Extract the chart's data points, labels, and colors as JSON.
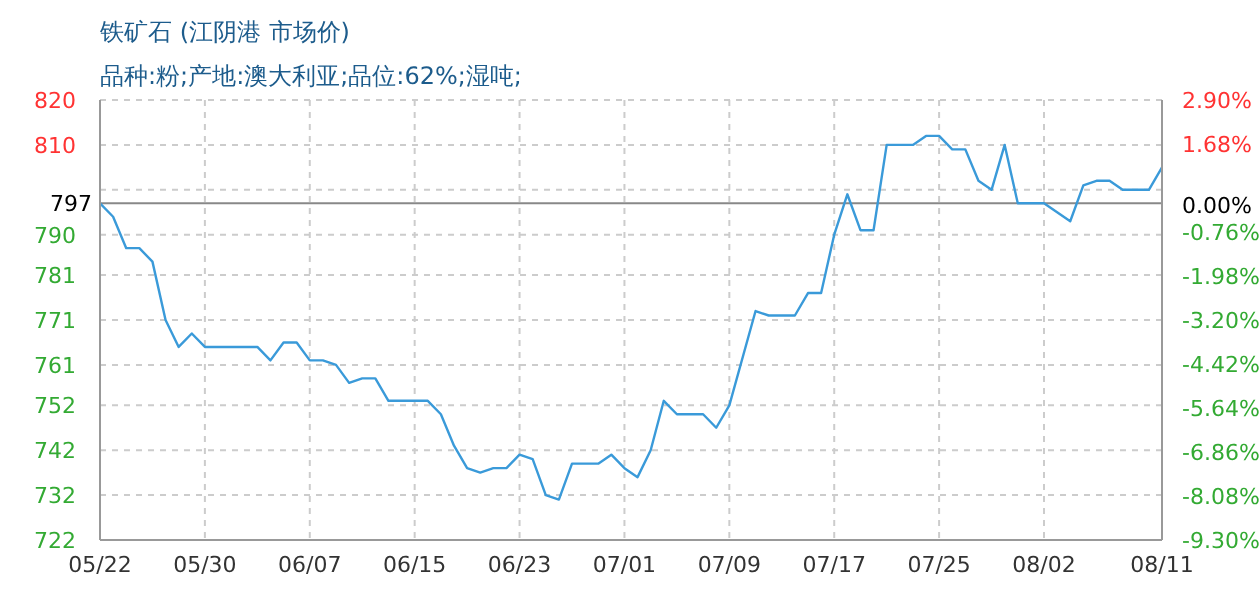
{
  "chart_data": {
    "type": "line",
    "title": "铁矿石 (江阴港 市场价)",
    "subtitle": "品种:粉;产地:澳大利亚;品位:62%;湿吨;",
    "x": [
      "--05-22",
      "--05-23",
      "--05-24",
      "--05-25",
      "--05-26",
      "--05-27",
      "--05-28",
      "--05-29",
      "--05-30",
      "--06-03",
      "--06-04",
      "--06-05",
      "--06-06",
      "--06-07",
      "--06-08",
      "--06-09",
      "--06-10",
      "--06-11",
      "--06-12",
      "--06-13",
      "--06-16",
      "--06-17",
      "--06-18",
      "--06-19",
      "--06-20",
      "--06-21",
      "--06-22",
      "--06-23",
      "--06-24",
      "--06-25",
      "--06-26",
      "--06-27",
      "--06-29",
      "--06-30",
      "--07-01",
      "--07-02",
      "--07-03",
      "--07-04",
      "--07-05",
      "--07-07",
      "--07-08",
      "--07-09",
      "--07-11",
      "--07-12",
      "--07-14",
      "--07-15",
      "--07-16",
      "--07-17",
      "--07-18",
      "--07-19",
      "--07-20",
      "--07-21",
      "--07-23",
      "--07-24",
      "--07-25",
      "--07-26",
      "--07-27",
      "--07-28",
      "--07-29",
      "--07-30",
      "--07-31",
      "--08-02",
      "--08-03",
      "--08-04",
      "--08-05",
      "--08-06",
      "--08-07",
      "--08-08",
      "--08-10",
      "--08-11"
    ],
    "series": [
      {
        "color": "#3a9ad9",
        "values": [
          797,
          794,
          787,
          787,
          784,
          771,
          765,
          768,
          765,
          765,
          762,
          766,
          766,
          762,
          762,
          761,
          757,
          758,
          758,
          753,
          753,
          750,
          743,
          738,
          737,
          738,
          738,
          741,
          740,
          732,
          731,
          739,
          739,
          741,
          738,
          736,
          742,
          753,
          750,
          750,
          747,
          752,
          773,
          772,
          772,
          777,
          777,
          790,
          799,
          791,
          791,
          810,
          810,
          812,
          812,
          809,
          809,
          802,
          800,
          810,
          797,
          797,
          795,
          793,
          801,
          802,
          802,
          800,
          800,
          805
        ]
      }
    ],
    "xlim": [
      "--05-22",
      "--08-11"
    ],
    "xticks": [
      {
        "value": "--05-22",
        "label": "05/22"
      },
      {
        "value": "--05-30",
        "label": "05/30"
      },
      {
        "value": "--06-07",
        "label": "06/07"
      },
      {
        "value": "--06-15",
        "label": "06/15"
      },
      {
        "value": "--06-23",
        "label": "06/23"
      },
      {
        "value": "--07-01",
        "label": "07/01"
      },
      {
        "value": "--07-09",
        "label": "07/09"
      },
      {
        "value": "--07-17",
        "label": "07/17"
      },
      {
        "value": "--07-25",
        "label": "07/25"
      },
      {
        "value": "--08-02",
        "label": "08/02"
      },
      {
        "value": "--08-11",
        "label": "08/11"
      }
    ],
    "ylim": [
      722,
      820
    ],
    "yticks": [
      820,
      810,
      {
        "value": 800,
        "label": null
      },
      790,
      781,
      771,
      761,
      752,
      742,
      732,
      722
    ],
    "y2lim": [
      -9.3,
      2.9
    ],
    "y2ticks": [
      {
        "value": 2.9,
        "label": "2.90%"
      },
      {
        "value": 1.68,
        "label": "1.68%"
      },
      {
        "value": 0,
        "label": "0.00%"
      },
      {
        "value": -0.76,
        "label": "-0.76%"
      },
      {
        "value": -1.98,
        "label": "-1.98%"
      },
      {
        "value": -3.2,
        "label": "-3.20%"
      },
      {
        "value": -4.42,
        "label": "-4.42%"
      },
      {
        "value": -5.64,
        "label": "-5.64%"
      },
      {
        "value": -6.86,
        "label": "-6.86%"
      },
      {
        "value": -8.08,
        "label": "-8.08%"
      },
      {
        "value": -9.3,
        "label": "-9.30%"
      }
    ],
    "ref_lines": [
      {
        "axis": "y",
        "value": 797,
        "label": "797",
        "color": "#888888"
      }
    ],
    "grid": true,
    "legend": false,
    "marker": "none",
    "line_style": "solid"
  }
}
